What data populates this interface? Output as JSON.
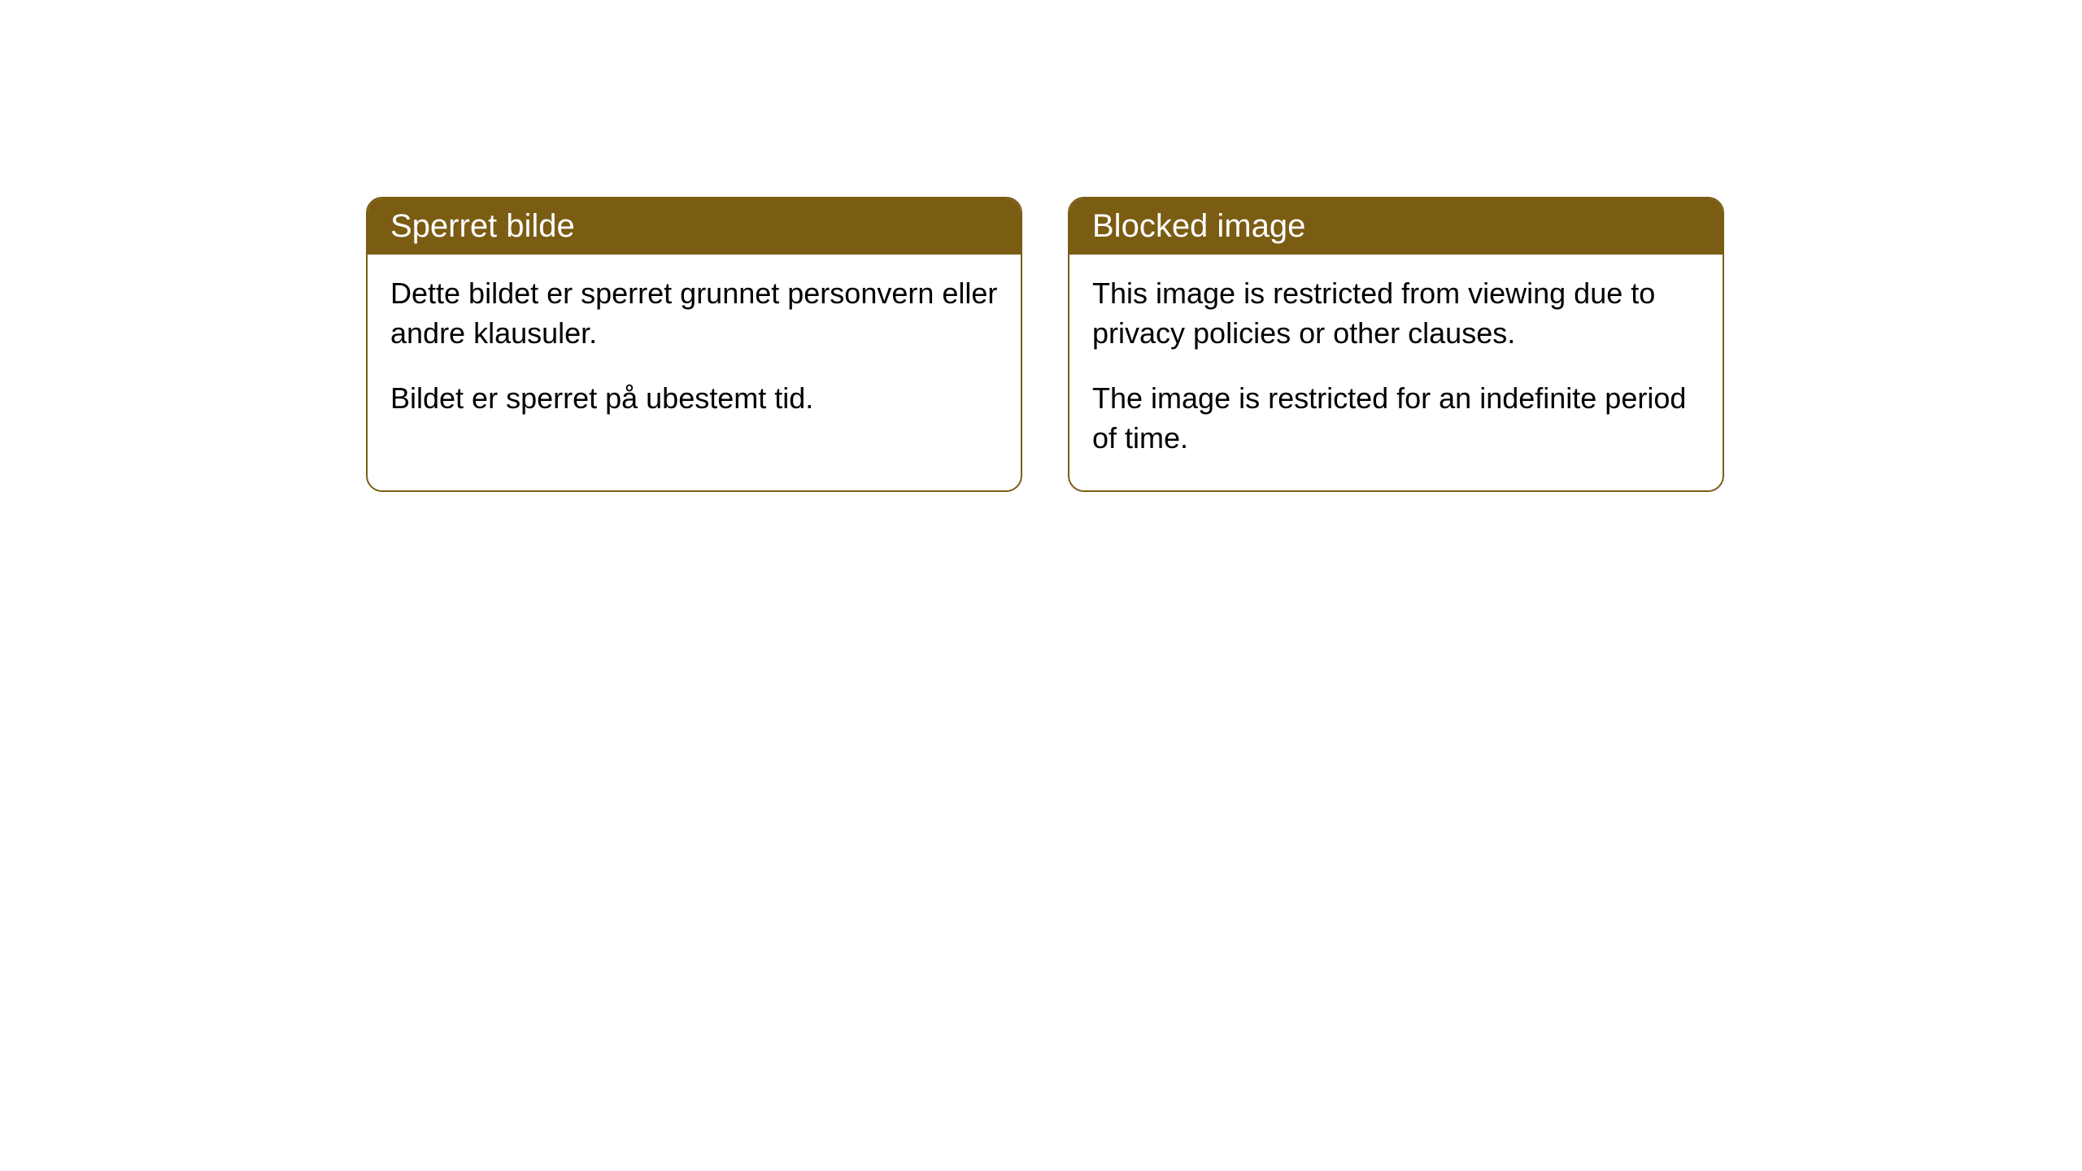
{
  "cards": [
    {
      "title": "Sperret bilde",
      "para1": "Dette bildet er sperret grunnet personvern eller andre klausuler.",
      "para2": "Bildet er sperret på ubestemt tid."
    },
    {
      "title": "Blocked image",
      "para1": "This image is restricted from viewing due to privacy policies or other clauses.",
      "para2": "The image is restricted for an indefinite period of time."
    }
  ],
  "style": {
    "header_bg": "#7a5c13",
    "header_color": "#ffffff",
    "border_color": "#7a5c13",
    "body_bg": "#ffffff",
    "text_color": "#000000",
    "border_radius": 20,
    "title_fontsize": 40,
    "body_fontsize": 36
  }
}
